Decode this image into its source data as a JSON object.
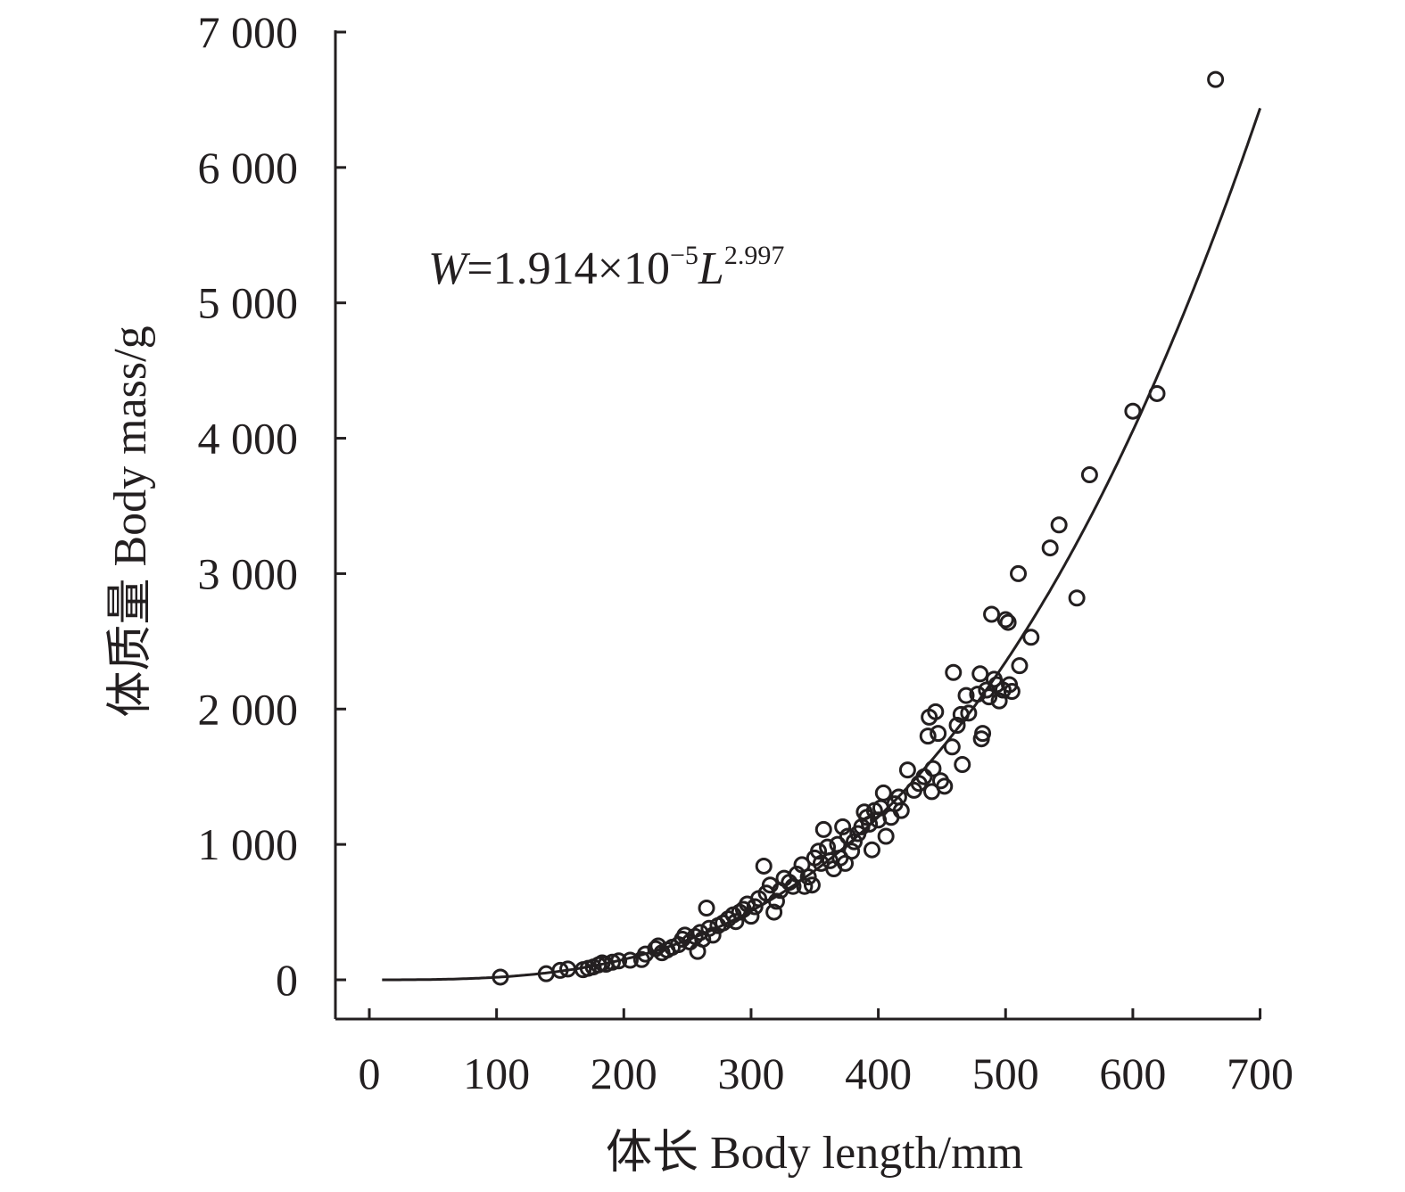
{
  "chart_data": {
    "type": "scatter",
    "xlabel": "体长 Body length/mm",
    "ylabel": "体质量 Body mass/g",
    "xlim": [
      0,
      700
    ],
    "ylim": [
      0,
      7000
    ],
    "x_ticks": [
      "0",
      "100",
      "200",
      "300",
      "400",
      "500",
      "600",
      "700"
    ],
    "y_ticks": [
      "0",
      "1 000",
      "2 000",
      "3 000",
      "4 000",
      "5 000",
      "6 000",
      "7 000"
    ],
    "grid": false,
    "fit": {
      "a": 1.914e-05,
      "b": 2.997,
      "x_range": [
        10,
        700
      ],
      "equation_parts": {
        "var": "W",
        "coef": "=1.914×10",
        "exp10": "−5",
        "var2": "L",
        "exp": "2.997"
      }
    },
    "series": [
      {
        "marker": "open-circle",
        "points": [
          [
            103,
            20
          ],
          [
            139,
            45
          ],
          [
            150,
            70
          ],
          [
            156,
            80
          ],
          [
            168,
            75
          ],
          [
            172,
            85
          ],
          [
            176,
            95
          ],
          [
            180,
            110
          ],
          [
            183,
            125
          ],
          [
            186,
            115
          ],
          [
            191,
            130
          ],
          [
            196,
            140
          ],
          [
            205,
            145
          ],
          [
            214,
            150
          ],
          [
            217,
            190
          ],
          [
            225,
            230
          ],
          [
            227,
            250
          ],
          [
            230,
            200
          ],
          [
            234,
            220
          ],
          [
            238,
            240
          ],
          [
            243,
            260
          ],
          [
            246,
            300
          ],
          [
            248,
            330
          ],
          [
            252,
            280
          ],
          [
            256,
            320
          ],
          [
            258,
            210
          ],
          [
            260,
            350
          ],
          [
            262,
            300
          ],
          [
            265,
            530
          ],
          [
            267,
            380
          ],
          [
            270,
            330
          ],
          [
            274,
            400
          ],
          [
            278,
            420
          ],
          [
            282,
            450
          ],
          [
            286,
            480
          ],
          [
            288,
            430
          ],
          [
            291,
            500
          ],
          [
            294,
            520
          ],
          [
            297,
            560
          ],
          [
            300,
            470
          ],
          [
            303,
            540
          ],
          [
            306,
            600
          ],
          [
            310,
            840
          ],
          [
            312,
            640
          ],
          [
            315,
            700
          ],
          [
            318,
            500
          ],
          [
            320,
            580
          ],
          [
            323,
            660
          ],
          [
            326,
            750
          ],
          [
            330,
            720
          ],
          [
            333,
            690
          ],
          [
            336,
            780
          ],
          [
            340,
            850
          ],
          [
            342,
            690
          ],
          [
            345,
            760
          ],
          [
            348,
            700
          ],
          [
            350,
            900
          ],
          [
            353,
            950
          ],
          [
            355,
            860
          ],
          [
            357,
            1110
          ],
          [
            360,
            980
          ],
          [
            362,
            880
          ],
          [
            365,
            820
          ],
          [
            368,
            1000
          ],
          [
            370,
            900
          ],
          [
            372,
            1130
          ],
          [
            374,
            860
          ],
          [
            376,
            1060
          ],
          [
            379,
            950
          ],
          [
            381,
            1020
          ],
          [
            384,
            1080
          ],
          [
            387,
            1130
          ],
          [
            389,
            1240
          ],
          [
            391,
            1200
          ],
          [
            393,
            1150
          ],
          [
            395,
            960
          ],
          [
            397,
            1250
          ],
          [
            400,
            1180
          ],
          [
            402,
            1270
          ],
          [
            404,
            1380
          ],
          [
            406,
            1060
          ],
          [
            410,
            1200
          ],
          [
            413,
            1300
          ],
          [
            416,
            1350
          ],
          [
            418,
            1250
          ],
          [
            423,
            1550
          ],
          [
            428,
            1400
          ],
          [
            432,
            1450
          ],
          [
            436,
            1500
          ],
          [
            439,
            1800
          ],
          [
            440,
            1940
          ],
          [
            442,
            1390
          ],
          [
            443,
            1560
          ],
          [
            445,
            1980
          ],
          [
            447,
            1820
          ],
          [
            449,
            1470
          ],
          [
            452,
            1430
          ],
          [
            458,
            1720
          ],
          [
            459,
            2270
          ],
          [
            462,
            1880
          ],
          [
            465,
            1960
          ],
          [
            466,
            1590
          ],
          [
            469,
            2100
          ],
          [
            471,
            1970
          ],
          [
            478,
            2110
          ],
          [
            480,
            2260
          ],
          [
            481,
            1780
          ],
          [
            482,
            1820
          ],
          [
            485,
            2140
          ],
          [
            487,
            2090
          ],
          [
            489,
            2700
          ],
          [
            491,
            2220
          ],
          [
            493,
            2180
          ],
          [
            495,
            2060
          ],
          [
            498,
            2140
          ],
          [
            500,
            2660
          ],
          [
            502,
            2640
          ],
          [
            503,
            2180
          ],
          [
            505,
            2130
          ],
          [
            510,
            3000
          ],
          [
            511,
            2320
          ],
          [
            520,
            2530
          ],
          [
            535,
            3190
          ],
          [
            542,
            3360
          ],
          [
            556,
            2820
          ],
          [
            566,
            3730
          ],
          [
            600,
            4200
          ],
          [
            619,
            4330
          ],
          [
            665,
            6650
          ]
        ]
      }
    ]
  }
}
